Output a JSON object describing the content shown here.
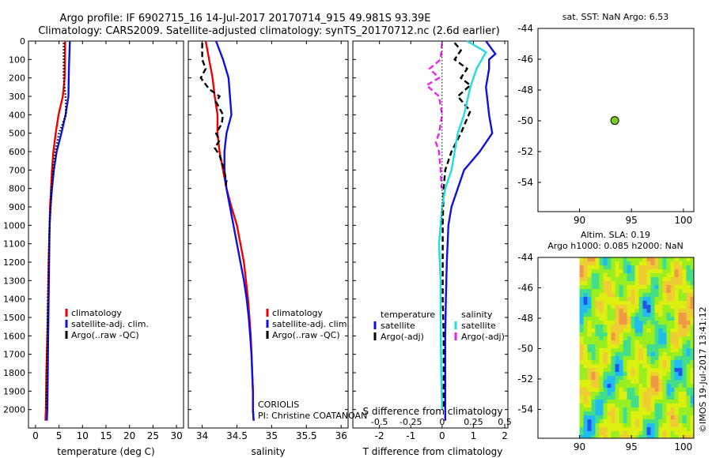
{
  "title": {
    "line1": "Argo profile: IF 6902715_16 14-Jul-2017 20170714_915 49.981S 93.39E",
    "line2": "Climatology: CARS2009. Satellite-adjusted climatology: synTS_20170712.nc (2.6d earlier)"
  },
  "colors": {
    "red": "#ee0000",
    "blue": "#1010dd",
    "black": "#000000",
    "cyan": "#22dddd",
    "magenta": "#ee22ee",
    "green": "#77cc22"
  },
  "chart_data": [
    {
      "type": "line",
      "id": "temperature",
      "xlabel": "temperature (deg C)",
      "ylim": [
        2100,
        0
      ],
      "xlim": [
        -1.5,
        31.5
      ],
      "xticks": [
        "0",
        "5",
        "10",
        "15",
        "20",
        "25",
        "30"
      ],
      "yticks": [
        "0",
        "100",
        "200",
        "300",
        "400",
        "500",
        "600",
        "700",
        "800",
        "900",
        "1000",
        "1100",
        "1200",
        "1300",
        "1400",
        "1500",
        "1600",
        "1700",
        "1800",
        "1900",
        "2000"
      ],
      "legend": [
        "climatology",
        "satellite-adj. clim.",
        "Argo(..raw -QC)"
      ],
      "series": [
        {
          "name": "climatology",
          "color": "red",
          "dash": "solid",
          "points": [
            [
              6.3,
              0
            ],
            [
              6.2,
              200
            ],
            [
              5.8,
              300
            ],
            [
              4.9,
              400
            ],
            [
              4.3,
              500
            ],
            [
              3.8,
              600
            ],
            [
              3.5,
              700
            ],
            [
              3.3,
              800
            ],
            [
              3.1,
              900
            ],
            [
              3.0,
              1000
            ],
            [
              2.8,
              1200
            ],
            [
              2.7,
              1400
            ],
            [
              2.5,
              1600
            ],
            [
              2.3,
              1800
            ],
            [
              2.2,
              2000
            ],
            [
              2.1,
              2060
            ]
          ]
        },
        {
          "name": "satellite-adj. clim.",
          "color": "blue",
          "dash": "solid",
          "points": [
            [
              7.3,
              0
            ],
            [
              7.1,
              150
            ],
            [
              7.0,
              300
            ],
            [
              6.4,
              400
            ],
            [
              5.5,
              500
            ],
            [
              4.5,
              600
            ],
            [
              3.9,
              700
            ],
            [
              3.5,
              800
            ],
            [
              3.2,
              900
            ],
            [
              3.0,
              1000
            ],
            [
              2.9,
              1200
            ],
            [
              2.8,
              1400
            ],
            [
              2.7,
              1600
            ],
            [
              2.6,
              1800
            ],
            [
              2.5,
              2000
            ],
            [
              2.4,
              2060
            ]
          ]
        },
        {
          "name": "Argo(..raw -QC)",
          "color": "black",
          "dash": "dotted",
          "points": [
            [
              6.0,
              10
            ],
            [
              6.0,
              200
            ],
            [
              6.4,
              300
            ],
            [
              6.5,
              400
            ],
            [
              5.0,
              500
            ],
            [
              4.2,
              600
            ],
            [
              3.7,
              700
            ],
            [
              3.4,
              800
            ],
            [
              3.2,
              900
            ],
            [
              3.0,
              1000
            ],
            [
              2.8,
              1200
            ],
            [
              2.6,
              1400
            ],
            [
              2.5,
              1600
            ],
            [
              2.4,
              1800
            ],
            [
              2.3,
              2000
            ]
          ]
        }
      ]
    },
    {
      "type": "line",
      "id": "salinity",
      "xlabel": "salinity",
      "ylim": [
        2100,
        0
      ],
      "xlim": [
        33.8,
        36.1
      ],
      "xticks": [
        "34",
        "34.5",
        "35",
        "35.5",
        "36"
      ],
      "legend": [
        "climatology",
        "satellite-adj. clim.",
        "Argo(..raw -QC)"
      ],
      "annotation": [
        "CORIOLIS",
        "PI: Christine COATANOAN"
      ],
      "series": [
        {
          "name": "climatology",
          "color": "red",
          "dash": "solid",
          "points": [
            [
              34.05,
              0
            ],
            [
              34.1,
              100
            ],
            [
              34.15,
              200
            ],
            [
              34.18,
              300
            ],
            [
              34.22,
              400
            ],
            [
              34.22,
              500
            ],
            [
              34.25,
              600
            ],
            [
              34.3,
              700
            ],
            [
              34.35,
              800
            ],
            [
              34.42,
              900
            ],
            [
              34.5,
              1000
            ],
            [
              34.55,
              1100
            ],
            [
              34.6,
              1200
            ],
            [
              34.63,
              1300
            ],
            [
              34.66,
              1400
            ],
            [
              34.68,
              1500
            ],
            [
              34.7,
              1600
            ],
            [
              34.71,
              1700
            ],
            [
              34.72,
              1800
            ],
            [
              34.73,
              1900
            ],
            [
              34.73,
              2000
            ],
            [
              34.74,
              2060
            ]
          ]
        },
        {
          "name": "satellite-adj. clim.",
          "color": "blue",
          "dash": "solid",
          "points": [
            [
              34.2,
              0
            ],
            [
              34.3,
              100
            ],
            [
              34.38,
              200
            ],
            [
              34.4,
              300
            ],
            [
              34.42,
              400
            ],
            [
              34.35,
              500
            ],
            [
              34.32,
              600
            ],
            [
              34.32,
              700
            ],
            [
              34.35,
              800
            ],
            [
              34.4,
              900
            ],
            [
              34.45,
              1000
            ],
            [
              34.5,
              1100
            ],
            [
              34.55,
              1200
            ],
            [
              34.6,
              1300
            ],
            [
              34.64,
              1400
            ],
            [
              34.67,
              1500
            ],
            [
              34.69,
              1600
            ],
            [
              34.71,
              1700
            ],
            [
              34.72,
              1800
            ],
            [
              34.73,
              1900
            ],
            [
              34.73,
              2000
            ],
            [
              34.74,
              2060
            ]
          ]
        },
        {
          "name": "Argo(..raw -QC)",
          "color": "black",
          "dash": "dashed",
          "points": [
            [
              34.0,
              10
            ],
            [
              34.0,
              100
            ],
            [
              34.05,
              150
            ],
            [
              33.98,
              200
            ],
            [
              34.1,
              260
            ],
            [
              34.25,
              300
            ],
            [
              34.2,
              330
            ],
            [
              34.3,
              400
            ],
            [
              34.28,
              450
            ],
            [
              34.2,
              500
            ],
            [
              34.25,
              540
            ],
            [
              34.18,
              580
            ],
            [
              34.25,
              620
            ],
            [
              34.3,
              680
            ],
            [
              34.35,
              760
            ],
            [
              34.33,
              800
            ]
          ]
        }
      ]
    },
    {
      "type": "line",
      "id": "difference",
      "xlabel": "T difference from climatology",
      "xlabel_top": "S difference from climatology",
      "ylim": [
        2100,
        0
      ],
      "xlim": [
        -2.85,
        2.1
      ],
      "xticks": [
        "-2",
        "-1",
        "0",
        "1",
        "2"
      ],
      "xticks_top": [
        "-0.5",
        "-0.25",
        "0",
        "0.25",
        "0.5"
      ],
      "xticks_top_pos": [
        -2,
        -1,
        0,
        1,
        2
      ],
      "legend": {
        "temperature_heading": "temperature",
        "salinity_heading": "salinity",
        "temperature": [
          "satellite",
          "Argo(-adj)"
        ],
        "salinity": [
          "satellite",
          "Argo(-adj)"
        ]
      },
      "series": [
        {
          "name": "T satellite",
          "color": "blue",
          "dash": "solid",
          "points": [
            [
              1.4,
              0
            ],
            [
              1.7,
              70
            ],
            [
              1.5,
              100
            ],
            [
              1.5,
              150
            ],
            [
              1.4,
              250
            ],
            [
              1.5,
              400
            ],
            [
              1.6,
              500
            ],
            [
              1.2,
              600
            ],
            [
              0.7,
              700
            ],
            [
              0.5,
              800
            ],
            [
              0.3,
              900
            ],
            [
              0.2,
              1000
            ],
            [
              0.15,
              1200
            ],
            [
              0.12,
              1400
            ],
            [
              0.1,
              1600
            ],
            [
              0.1,
              1800
            ],
            [
              0.1,
              2000
            ],
            [
              0.1,
              2060
            ]
          ]
        },
        {
          "name": "T Argo(-adj)",
          "color": "black",
          "dash": "dashed",
          "points": [
            [
              0.4,
              10
            ],
            [
              0.6,
              50
            ],
            [
              0.4,
              100
            ],
            [
              0.8,
              150
            ],
            [
              0.6,
              200
            ],
            [
              0.9,
              240
            ],
            [
              0.5,
              300
            ],
            [
              0.9,
              380
            ],
            [
              0.6,
              500
            ],
            [
              0.3,
              600
            ],
            [
              0.1,
              700
            ],
            [
              0.05,
              800
            ],
            [
              0.02,
              1000
            ],
            [
              0.02,
              1200
            ],
            [
              0.02,
              1400
            ],
            [
              0.05,
              1600
            ],
            [
              0.05,
              1800
            ],
            [
              0.05,
              2000
            ]
          ]
        },
        {
          "name": "S satellite",
          "color": "cyan",
          "dash": "solid",
          "points": [
            [
              0.8,
              0
            ],
            [
              1.2,
              40
            ],
            [
              1.4,
              60
            ],
            [
              1.1,
              150
            ],
            [
              0.9,
              250
            ],
            [
              0.7,
              400
            ],
            [
              0.5,
              500
            ],
            [
              0.4,
              600
            ],
            [
              0.3,
              700
            ],
            [
              0.1,
              800
            ],
            [
              0.0,
              900
            ],
            [
              -0.05,
              1000
            ],
            [
              -0.1,
              1100
            ],
            [
              -0.05,
              1300
            ],
            [
              -0.05,
              1500
            ],
            [
              -0.03,
              1800
            ],
            [
              0.0,
              2000
            ]
          ]
        },
        {
          "name": "S Argo(-adj)",
          "color": "magenta",
          "dash": "dashed",
          "points": [
            [
              0.0,
              10
            ],
            [
              -0.05,
              100
            ],
            [
              -0.4,
              150
            ],
            [
              -0.1,
              200
            ],
            [
              -0.5,
              240
            ],
            [
              -0.1,
              300
            ],
            [
              0.0,
              400
            ],
            [
              -0.1,
              500
            ],
            [
              -0.2,
              550
            ],
            [
              -0.1,
              600
            ],
            [
              -0.05,
              700
            ],
            [
              -0.02,
              800
            ]
          ]
        },
        {
          "name": "zero",
          "color": "black",
          "dash": "dotted",
          "points": [
            [
              0,
              0
            ],
            [
              0,
              1000
            ]
          ]
        }
      ]
    },
    {
      "type": "scatter",
      "id": "location",
      "title": "sat. SST: NaN Argo: 6.53",
      "xlim": [
        86,
        101
      ],
      "ylim": [
        -55.9,
        -44
      ],
      "xticks": [
        "90",
        "95",
        "100"
      ],
      "yticks": [
        "-44",
        "-46",
        "-48",
        "-50",
        "-52",
        "-54"
      ],
      "points": [
        {
          "x": 93.39,
          "y": -49.98,
          "color": "green"
        }
      ]
    },
    {
      "type": "heatmap",
      "id": "sla",
      "title_line1": "Altim. SLA: 0.19",
      "title_line2": "Argo h1000: 0.085 h2000: NaN",
      "xlim": [
        86,
        101
      ],
      "ylim": [
        -55.9,
        -44
      ],
      "xticks": [
        "90",
        "95",
        "100"
      ],
      "yticks": [
        "-44",
        "-46",
        "-48",
        "-50",
        "-52",
        "-54"
      ],
      "data_extent_x": [
        90,
        101
      ],
      "palette": [
        "#2255ee",
        "#22bbee",
        "#44dd88",
        "#99ee22",
        "#ddee11",
        "#eecc33",
        "#ee9944"
      ]
    }
  ],
  "timestamp": "©IMOS 19-Jul-2017 13:41:12"
}
